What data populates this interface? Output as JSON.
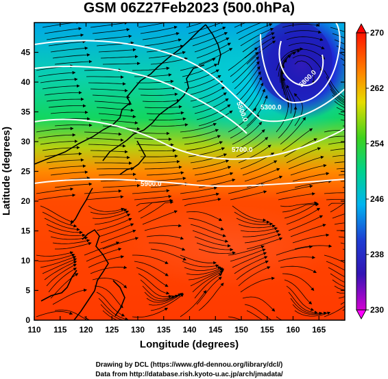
{
  "title": "GSM 06Z27Feb2023 (500.0hPa)",
  "xlabel": "Longitude (degrees)",
  "ylabel": "Latitude  (degrees)",
  "x_ticks": [
    "110",
    "115",
    "120",
    "125",
    "130",
    "135",
    "140",
    "145",
    "150",
    "155",
    "160",
    "165"
  ],
  "y_ticks": [
    "0",
    "5",
    "10",
    "15",
    "20",
    "25",
    "30",
    "35",
    "40",
    "45"
  ],
  "colorbar_ticks": [
    "270",
    "262",
    "254",
    "246",
    "238",
    "230"
  ],
  "credit_line1": "Drawing by DCL (https://www.gfd-dennou.org/library/dcl/)",
  "credit_line2": "Data from http://database.rish.kyoto-u.ac.jp/arch/jmadata/",
  "contour_labels": [
    "5300.0",
    "5500.0",
    "5700.0",
    "5800.0",
    "5900.0"
  ],
  "chart_data": {
    "type": "heatmap",
    "title": "GSM 06Z27Feb2023 (500.0hPa)",
    "xlabel": "Longitude (degrees)",
    "ylabel": "Latitude  (degrees)",
    "xlim": [
      110,
      170
    ],
    "ylim": [
      0,
      50
    ],
    "color_scale": {
      "min": 230,
      "max": 270,
      "ticks": [
        270,
        262,
        254,
        246,
        238,
        230
      ]
    },
    "colormap_stops": [
      "#e600d6",
      "#1e1eb4",
      "#00b4f0",
      "#00dc82",
      "#28d21e",
      "#dcdc00",
      "#ff8c00",
      "#ff2800"
    ],
    "colorbar_extended_colors": {
      "low": "#ff00ff",
      "high": "#ff0000"
    },
    "overlays": [
      "temperature shading",
      "geopotential height contours",
      "wind vectors/streamlines",
      "coastlines"
    ],
    "contours": [
      {
        "label": "5300.0",
        "lon": 154.5,
        "lat": 37.0
      },
      {
        "label": "5500.0",
        "lon": 153.5,
        "lat": 36.0
      },
      {
        "label": "5700.0",
        "lon": 148.0,
        "lat": 32.0
      },
      {
        "label": "5800.0",
        "lon": 156.5,
        "lat": 42.0
      },
      {
        "label": "5900.0",
        "lon": 117.0,
        "lat": 25.0
      }
    ]
  }
}
